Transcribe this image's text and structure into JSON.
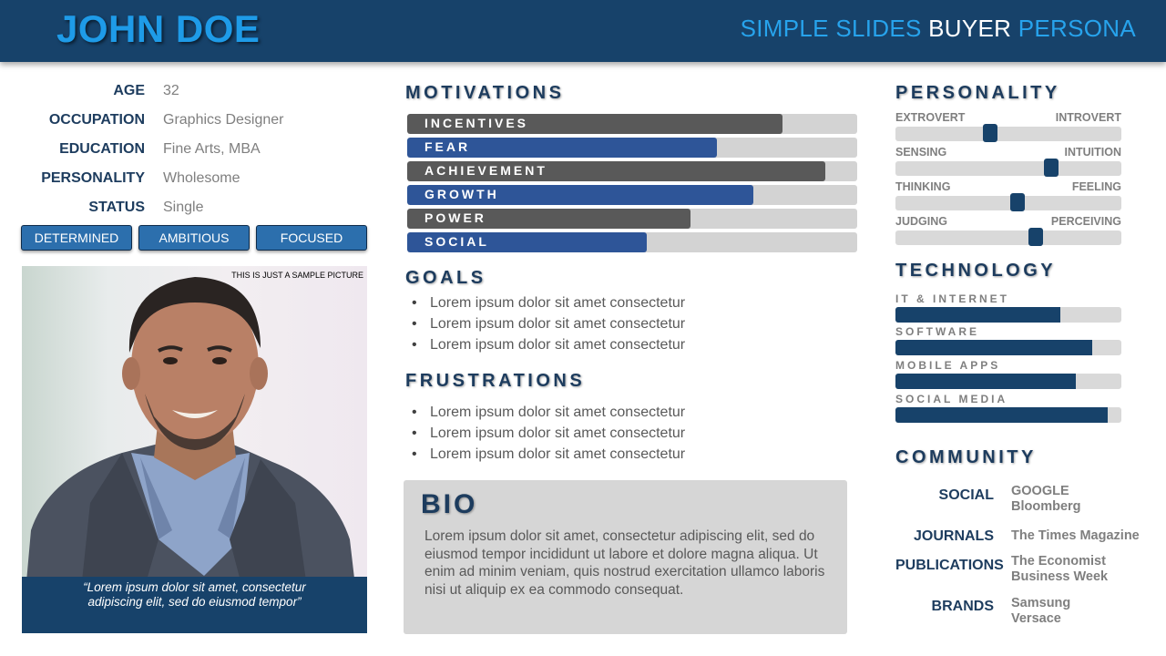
{
  "header": {
    "name": "JOHN DOE",
    "brand_part1": "SIMPLE SLIDES ",
    "brand_part2": "BUYER",
    "brand_part3": " PERSONA"
  },
  "details": [
    {
      "label": "AGE",
      "value": "32"
    },
    {
      "label": "OCCUPATION",
      "value": "Graphics Designer"
    },
    {
      "label": "EDUCATION",
      "value": "Fine Arts, MBA"
    },
    {
      "label": "PERSONALITY",
      "value": "Wholesome"
    },
    {
      "label": "STATUS",
      "value": "Single"
    }
  ],
  "traits": [
    "DETERMINED",
    "AMBITIOUS",
    "FOCUSED"
  ],
  "photo": {
    "caption": "THIS IS JUST A SAMPLE PICTURE",
    "quote": "“Lorem ipsum dolor sit amet, consectetur adipiscing elit, sed do eiusmod tempor”"
  },
  "motivations": {
    "title": "MOTIVATIONS",
    "items": [
      {
        "label": "INCENTIVES",
        "value": 0.835,
        "color": "#595959"
      },
      {
        "label": "FEAR",
        "value": 0.688,
        "color": "#2e5598"
      },
      {
        "label": "ACHIEVEMENT",
        "value": 0.93,
        "color": "#595959"
      },
      {
        "label": "GROWTH",
        "value": 0.769,
        "color": "#2e5598"
      },
      {
        "label": "POWER",
        "value": 0.63,
        "color": "#595959"
      },
      {
        "label": "SOCIAL",
        "value": 0.532,
        "color": "#2e5598"
      }
    ]
  },
  "goals": {
    "title": "GOALS",
    "items": [
      "Lorem ipsum dolor sit amet consectetur",
      "Lorem ipsum dolor sit amet consectetur",
      "Lorem ipsum dolor sit amet consectetur"
    ]
  },
  "frustrations": {
    "title": "FRUSTRATIONS",
    "items": [
      "Lorem ipsum dolor sit amet consectetur",
      "Lorem ipsum dolor sit amet consectetur",
      "Lorem ipsum dolor sit amet consectetur"
    ]
  },
  "bio": {
    "title": "BIO",
    "text": "Lorem ipsum dolor sit amet, consectetur adipiscing elit, sed do eiusmod tempor incididunt ut labore et dolore magna aliqua. Ut enim ad minim veniam, quis nostrud exercitation ullamco laboris nisi ut aliquip ex ea commodo consequat."
  },
  "personality": {
    "title": "PERSONALITY",
    "items": [
      {
        "left": "EXTROVERT",
        "right": "INTROVERT",
        "value": 0.42
      },
      {
        "left": "SENSING",
        "right": "INTUITION",
        "value": 0.69
      },
      {
        "left": "THINKING",
        "right": "FEELING",
        "value": 0.54
      },
      {
        "left": "JUDGING",
        "right": "PERCEIVING",
        "value": 0.62
      }
    ]
  },
  "technology": {
    "title": "TECHNOLOGY",
    "items": [
      {
        "label": "IT & INTERNET",
        "value": 0.73
      },
      {
        "label": "SOFTWARE",
        "value": 0.87
      },
      {
        "label": "MOBILE APPS",
        "value": 0.8
      },
      {
        "label": "SOCIAL MEDIA",
        "value": 0.94
      }
    ]
  },
  "community": {
    "title": "COMMUNITY",
    "items": [
      {
        "label": "SOCIAL",
        "values": [
          "GOOGLE",
          "Bloomberg"
        ]
      },
      {
        "label": "JOURNALS",
        "values": [
          "The Times Magazine"
        ]
      },
      {
        "label": "PUBLICATIONS",
        "values": [
          "The Economist",
          "Business Week"
        ]
      },
      {
        "label": "BRANDS",
        "values": [
          "Samsung",
          "Versace"
        ]
      }
    ]
  }
}
